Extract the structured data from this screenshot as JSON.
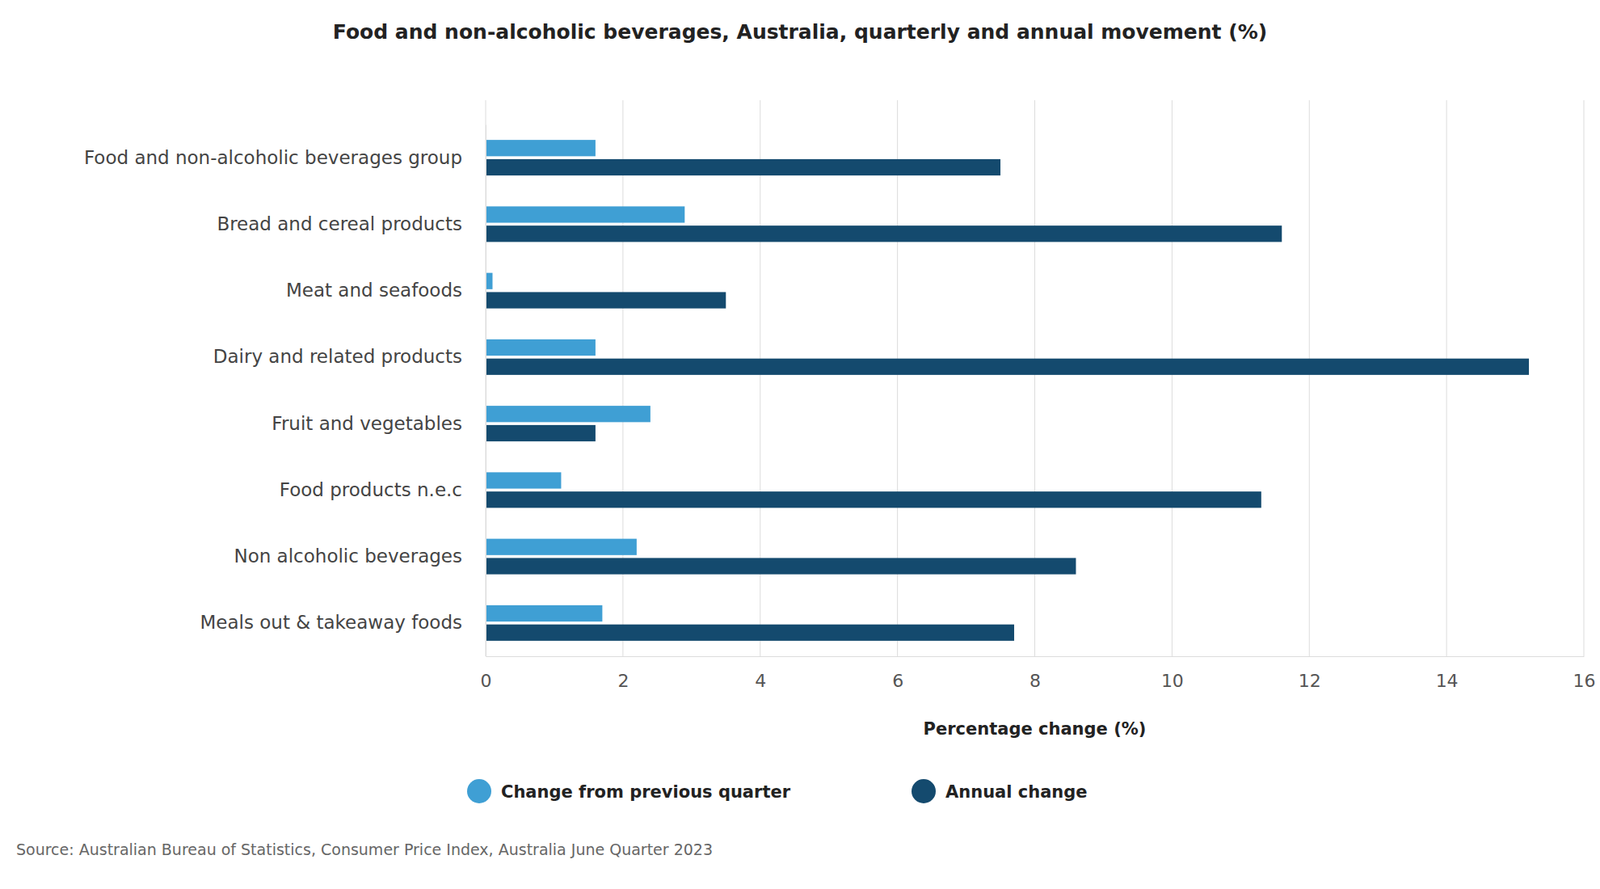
{
  "chart_data": {
    "type": "bar",
    "orientation": "horizontal",
    "title": "Food and non-alcoholic beverages, Australia, quarterly and annual movement (%)",
    "x_label": "Percentage change (%)",
    "source": "Source: Australian Bureau of Statistics, Consumer Price Index, Australia June Quarter 2023",
    "categories": [
      "Food and non-alcoholic beverages group",
      "Bread and cereal products",
      "Meat and seafoods",
      "Dairy and related products",
      "Fruit and vegetables",
      "Food products n.e.c",
      "Non alcoholic beverages",
      "Meals out & takeaway foods"
    ],
    "series": [
      {
        "name": "Change from previous quarter",
        "color": "#3f9fd4",
        "values": [
          1.6,
          2.9,
          0.1,
          1.6,
          2.4,
          1.1,
          2.2,
          1.7
        ]
      },
      {
        "name": "Annual change",
        "color": "#144a6e",
        "values": [
          7.5,
          11.6,
          3.5,
          15.2,
          1.6,
          11.3,
          8.6,
          7.7
        ]
      }
    ],
    "xlim": [
      0,
      16
    ],
    "xticks": [
      0,
      2,
      4,
      6,
      8,
      10,
      12,
      14,
      16
    ],
    "grid": true,
    "legend": "bottom"
  }
}
